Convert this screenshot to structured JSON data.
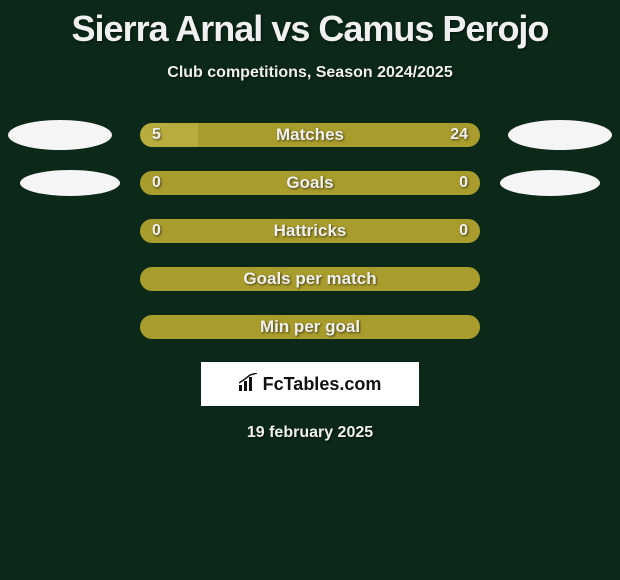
{
  "title": "Sierra Arnal vs Camus Perojo",
  "subtitle": "Club competitions, Season 2024/2025",
  "date": "19 february 2025",
  "logo_text": "FcTables.com",
  "colors": {
    "background": "#0b2818",
    "bar_olive": "#a89c2c",
    "bar_olive_light": "#b8ac3c",
    "ellipse_white": "#f5f5f5",
    "text": "#f0f0f0"
  },
  "stats": [
    {
      "label": "Matches",
      "left_value": "5",
      "right_value": "24",
      "left_pct": 17,
      "right_pct": 83,
      "left_color": "#b8ac3c",
      "right_color": "#a89c2c",
      "show_left_ellipse": true,
      "show_right_ellipse": true,
      "ellipse_class_left": "ellipse-row1-left",
      "ellipse_class_right": "ellipse-row1-right"
    },
    {
      "label": "Goals",
      "left_value": "0",
      "right_value": "0",
      "left_pct": 50,
      "right_pct": 50,
      "left_color": "#a89c2c",
      "right_color": "#a89c2c",
      "show_left_ellipse": true,
      "show_right_ellipse": true,
      "ellipse_class_left": "ellipse-row2-left",
      "ellipse_class_right": "ellipse-row2-right"
    },
    {
      "label": "Hattricks",
      "left_value": "0",
      "right_value": "0",
      "left_pct": 50,
      "right_pct": 50,
      "left_color": "#a89c2c",
      "right_color": "#a89c2c",
      "show_left_ellipse": false,
      "show_right_ellipse": false
    },
    {
      "label": "Goals per match",
      "left_value": "",
      "right_value": "",
      "full_bar": true,
      "full_color": "#a89c2c",
      "show_left_ellipse": false,
      "show_right_ellipse": false
    },
    {
      "label": "Min per goal",
      "left_value": "",
      "right_value": "",
      "full_bar": true,
      "full_color": "#a89c2c",
      "show_left_ellipse": false,
      "show_right_ellipse": false
    }
  ]
}
